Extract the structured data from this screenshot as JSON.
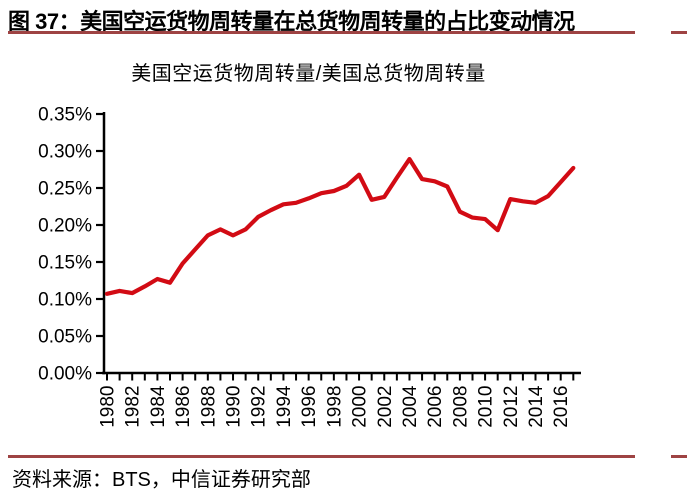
{
  "header": {
    "title": "图 37：美国空运货物周转量在总货物周转量的占比变动情况"
  },
  "footer": {
    "source": "资料来源：BTS，中信证券研究部"
  },
  "colors": {
    "line": "#d20b14",
    "separator_rule": "#9e4343",
    "axis": "#000000",
    "text": "#000000",
    "background": "#ffffff"
  },
  "chart_data": {
    "type": "line",
    "title": "美国空运货物周转量/美国总货物周转量",
    "xlabel": "",
    "ylabel": "",
    "unit": "%",
    "grid": false,
    "legend": "none",
    "ylim": [
      0,
      0.35
    ],
    "ytick_step": 0.05,
    "ytick_labels": [
      "0.00%",
      "0.05%",
      "0.10%",
      "0.15%",
      "0.20%",
      "0.25%",
      "0.30%",
      "0.35%"
    ],
    "xtick_label_interval": 2,
    "xtick_labels": [
      "1980",
      "1982",
      "1984",
      "1986",
      "1988",
      "1990",
      "1992",
      "1994",
      "1996",
      "1998",
      "2000",
      "2002",
      "2004",
      "2006",
      "2008",
      "2010",
      "2012",
      "2014",
      "2016"
    ],
    "x": [
      1980,
      1981,
      1982,
      1983,
      1984,
      1985,
      1986,
      1987,
      1988,
      1989,
      1990,
      1991,
      1992,
      1993,
      1994,
      1995,
      1996,
      1997,
      1998,
      1999,
      2000,
      2001,
      2002,
      2003,
      2004,
      2005,
      2006,
      2007,
      2008,
      2009,
      2010,
      2011,
      2012,
      2013,
      2014,
      2015,
      2016,
      2017
    ],
    "values": [
      0.107,
      0.111,
      0.108,
      0.117,
      0.127,
      0.122,
      0.148,
      0.167,
      0.186,
      0.194,
      0.186,
      0.194,
      0.211,
      0.22,
      0.228,
      0.23,
      0.236,
      0.243,
      0.246,
      0.253,
      0.268,
      0.234,
      0.238,
      0.264,
      0.289,
      0.262,
      0.259,
      0.252,
      0.218,
      0.21,
      0.208,
      0.193,
      0.235,
      0.232,
      0.23,
      0.239,
      0.258,
      0.277
    ],
    "line_color": "#d20b14"
  }
}
